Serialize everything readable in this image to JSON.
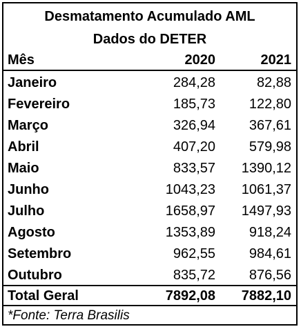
{
  "title": "Desmatamento Acumulado AML",
  "subtitle": "Dados do DETER",
  "header": {
    "month": "Mês",
    "y2020": "2020",
    "y2021": "2021"
  },
  "rows": [
    {
      "month": "Janeiro",
      "y2020": "284,28",
      "y2021": "82,88"
    },
    {
      "month": "Fevereiro",
      "y2020": "185,73",
      "y2021": "122,80"
    },
    {
      "month": "Março",
      "y2020": "326,94",
      "y2021": "367,61"
    },
    {
      "month": "Abril",
      "y2020": "407,20",
      "y2021": "579,98"
    },
    {
      "month": "Maio",
      "y2020": "833,57",
      "y2021": "1390,12"
    },
    {
      "month": "Junho",
      "y2020": "1043,23",
      "y2021": "1061,37"
    },
    {
      "month": "Julho",
      "y2020": "1658,97",
      "y2021": "1497,93"
    },
    {
      "month": "Agosto",
      "y2020": "1353,89",
      "y2021": "918,24"
    },
    {
      "month": "Setembro",
      "y2020": "962,55",
      "y2021": "984,61"
    },
    {
      "month": "Outubro",
      "y2020": "835,72",
      "y2021": "876,56"
    }
  ],
  "total": {
    "label": "Total Geral",
    "y2020": "7892,08",
    "y2021": "7882,10"
  },
  "source": "*Fonte: Terra Brasilis"
}
